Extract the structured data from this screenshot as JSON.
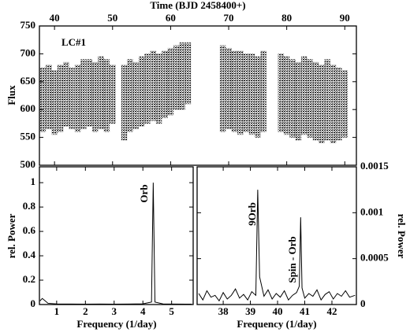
{
  "chart_data": [
    {
      "type": "range",
      "title": "Time (BJD 2458400+)",
      "ylabel": "Flux",
      "annotation": "LC#1",
      "color": "#000000",
      "x": [
        38,
        39,
        40,
        41,
        42,
        43,
        44,
        45,
        46,
        47,
        48,
        49,
        50,
        52,
        53,
        54,
        55,
        56,
        57,
        58,
        59,
        60,
        61,
        62,
        63,
        69,
        70,
        71,
        72,
        73,
        74,
        75,
        76,
        79,
        80,
        81,
        82,
        83,
        84,
        85,
        86,
        87,
        88,
        89,
        90
      ],
      "low": [
        560,
        565,
        555,
        560,
        570,
        565,
        560,
        565,
        570,
        560,
        565,
        560,
        575,
        545,
        560,
        565,
        570,
        575,
        580,
        575,
        585,
        590,
        600,
        600,
        610,
        560,
        565,
        560,
        555,
        560,
        555,
        550,
        560,
        560,
        555,
        550,
        545,
        555,
        550,
        545,
        540,
        545,
        540,
        545,
        550
      ],
      "high": [
        675,
        680,
        670,
        680,
        685,
        675,
        680,
        690,
        690,
        685,
        695,
        690,
        680,
        680,
        690,
        685,
        695,
        700,
        705,
        700,
        705,
        710,
        715,
        720,
        720,
        715,
        710,
        705,
        705,
        700,
        700,
        695,
        705,
        700,
        695,
        690,
        685,
        695,
        690,
        685,
        680,
        690,
        680,
        675,
        670
      ],
      "xlim": [
        37.4,
        92
      ],
      "xticks": [
        40,
        50,
        60,
        70,
        80,
        90
      ],
      "ylim": [
        500,
        750
      ],
      "yticks": [
        500,
        550,
        600,
        650,
        700,
        750
      ]
    },
    {
      "type": "line",
      "xlabel": "Frequency (1/day)",
      "ylabel": "rel. Power",
      "annotation": "Orb",
      "color": "#000000",
      "x": [
        0.42,
        0.5,
        0.7,
        1.0,
        1.5,
        2.0,
        2.5,
        3.0,
        3.5,
        4.0,
        4.3,
        4.36,
        4.42,
        4.7,
        5.0,
        5.5,
        5.7
      ],
      "values": [
        0.03,
        0.05,
        0.01,
        0.005,
        0.004,
        0.003,
        0.004,
        0.003,
        0.004,
        0.006,
        0.02,
        1.0,
        0.02,
        0.005,
        0.004,
        0.003,
        0.003
      ],
      "xlim": [
        0.4,
        5.75
      ],
      "xticks": [
        1,
        2,
        3,
        4,
        5
      ],
      "ylim": [
        0,
        1.13
      ],
      "yticks": [
        0,
        0.2,
        0.4,
        0.6,
        0.8,
        1
      ]
    },
    {
      "type": "line",
      "xlabel": "Frequency (1/day)",
      "ylabel": "rel. Power",
      "annotations": [
        "9Orb",
        "Spin - Orb"
      ],
      "color": "#000000",
      "x": [
        37.1,
        37.25,
        37.4,
        37.55,
        37.7,
        37.85,
        38.0,
        38.15,
        38.3,
        38.45,
        38.6,
        38.75,
        38.9,
        39.05,
        39.2,
        39.27,
        39.34,
        39.5,
        39.65,
        39.8,
        39.95,
        40.1,
        40.25,
        40.4,
        40.55,
        40.7,
        40.8,
        40.85,
        40.9,
        41.0,
        41.15,
        41.3,
        41.45,
        41.6,
        41.75,
        41.9,
        42.05,
        42.2,
        42.35,
        42.5,
        42.65,
        42.85
      ],
      "values": [
        0.00012,
        5e-05,
        0.00015,
        8e-05,
        0.0001,
        4e-05,
        0.00013,
        6e-05,
        0.0001,
        0.00017,
        7e-05,
        0.00011,
        5e-05,
        0.00014,
        0.0001,
        0.00125,
        0.0003,
        9e-05,
        0.00016,
        6e-05,
        0.00012,
        8e-05,
        0.00015,
        5e-05,
        0.0001,
        0.00013,
        0.0002,
        0.00095,
        0.00018,
        7e-05,
        0.00012,
        9e-05,
        0.00016,
        5e-05,
        0.00011,
        0.00014,
        6e-05,
        0.00012,
        9e-05,
        0.00015,
        8e-05,
        0.0001
      ],
      "xlim": [
        37.04,
        42.9
      ],
      "xticks": [
        38,
        39,
        40,
        41,
        42
      ],
      "ylim": [
        0,
        0.0015
      ],
      "yticks": [
        0,
        0.0005,
        0.001,
        0.0015
      ]
    }
  ]
}
